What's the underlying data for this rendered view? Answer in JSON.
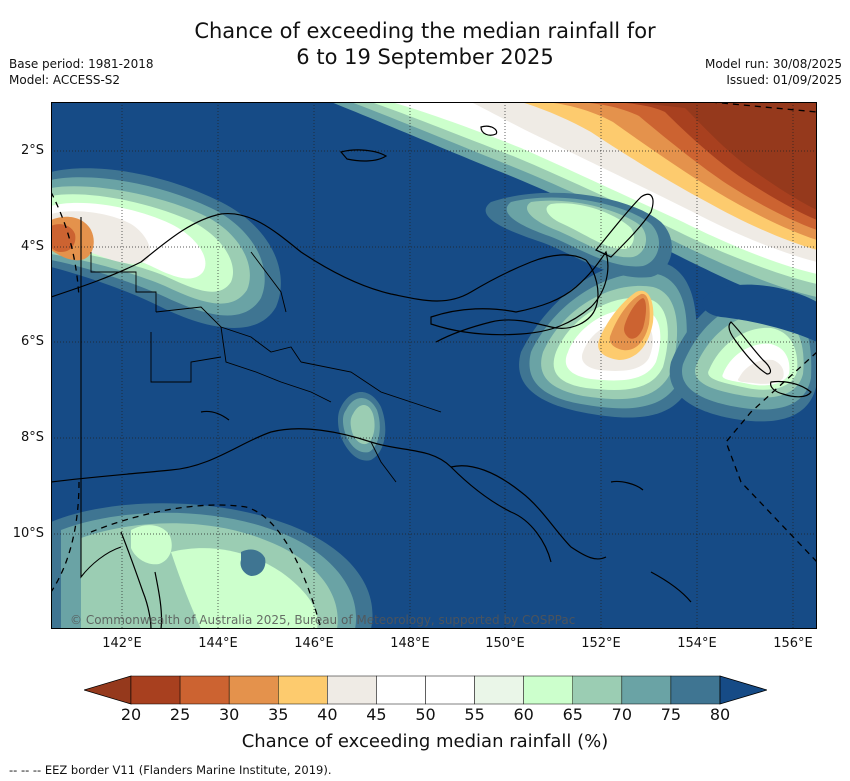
{
  "title_line1": "Chance of exceeding the median rainfall for",
  "title_line2": "6 to 19 September 2025",
  "base_period": "Base period: 1981-2018",
  "model": "Model: ACCESS-S2",
  "model_run": "Model run: 30/08/2025",
  "issued": "Issued: 01/09/2025",
  "lat_labels": [
    "2°S",
    "4°S",
    "6°S",
    "8°S",
    "10°S"
  ],
  "lon_labels": [
    "142°E",
    "144°E",
    "146°E",
    "148°E",
    "150°E",
    "152°E",
    "154°E",
    "156°E"
  ],
  "credit": "© Commonwealth of Australia 2025, Bureau of Meteorology, supported by COSPPac",
  "colorbar": {
    "ticks": [
      "20",
      "25",
      "30",
      "35",
      "40",
      "45",
      "50",
      "55",
      "60",
      "65",
      "70",
      "75",
      "80"
    ],
    "colors": [
      "#a8401f",
      "#cc6331",
      "#e4924c",
      "#fdcb6e",
      "#efebe5",
      "#ffffff",
      "#ffffff",
      "#eaf6e8",
      "#ccffcc",
      "#9bcdb3",
      "#6aa3a5",
      "#3f7592",
      "#164b86"
    ],
    "low_color": "#95391c",
    "high_color": "#164b86",
    "label": "Chance of exceeding median rainfall (%)"
  },
  "footer": "--  --  -- EEZ border V11 (Flanders Marine Institute, 2019)."
}
